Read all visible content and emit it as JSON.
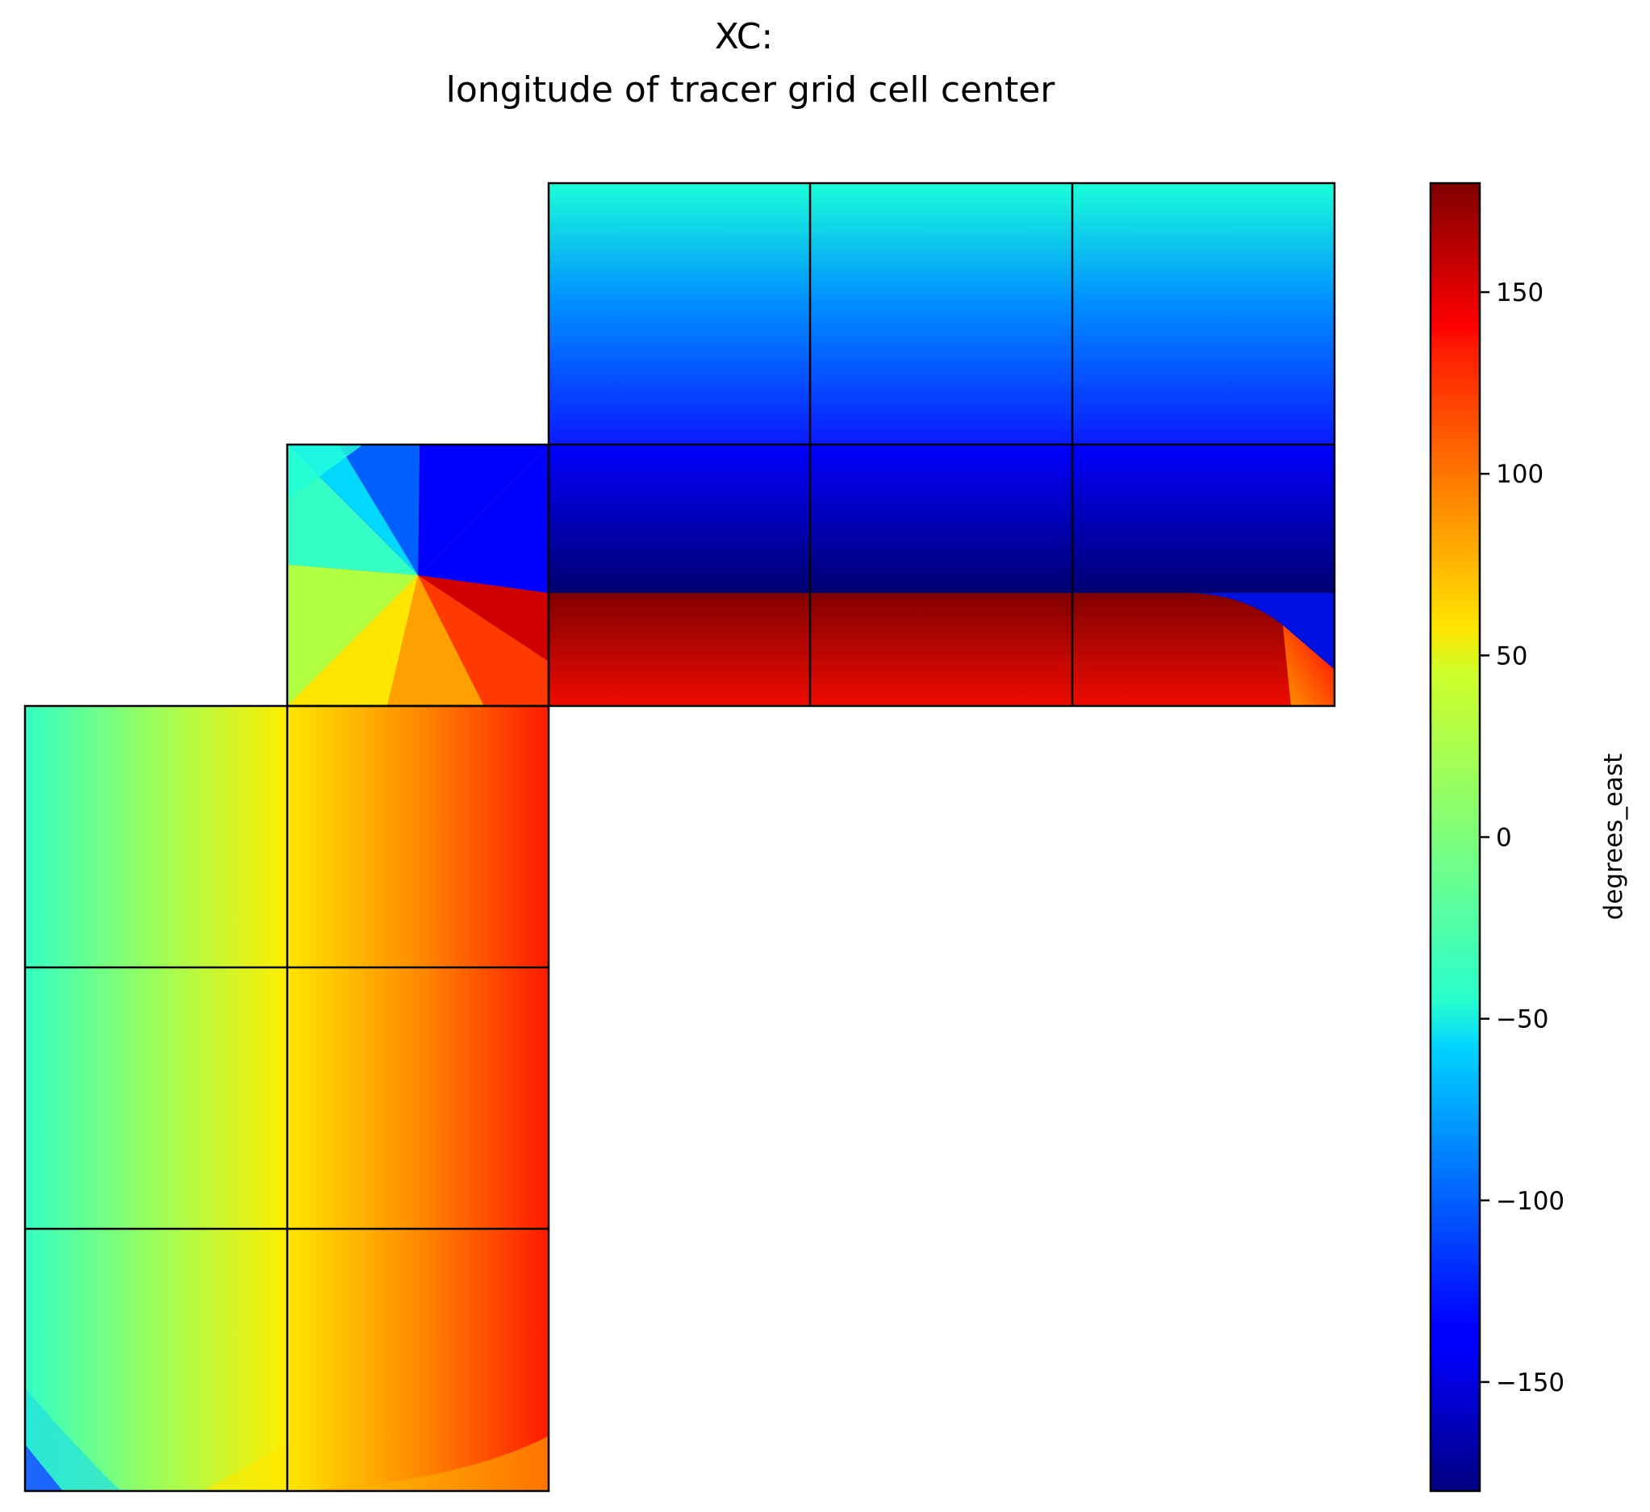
{
  "chart_data": {
    "type": "heatmap",
    "title_line1": "XC:",
    "title_line2": "longitude of tracer grid cell center",
    "colorbar": {
      "label": "degrees_east",
      "range": [
        -180,
        180
      ],
      "ticks": [
        {
          "value": 150,
          "label": "150"
        },
        {
          "value": 100,
          "label": "100"
        },
        {
          "value": 50,
          "label": "50"
        },
        {
          "value": 0,
          "label": "0"
        },
        {
          "value": -50,
          "label": "−50"
        },
        {
          "value": -100,
          "label": "−100"
        },
        {
          "value": -150,
          "label": "−150"
        }
      ],
      "colormap": "jet"
    },
    "grid": "lat-lon-cap facets of 3x3 tiles, tile boundaries drawn in black"
  }
}
